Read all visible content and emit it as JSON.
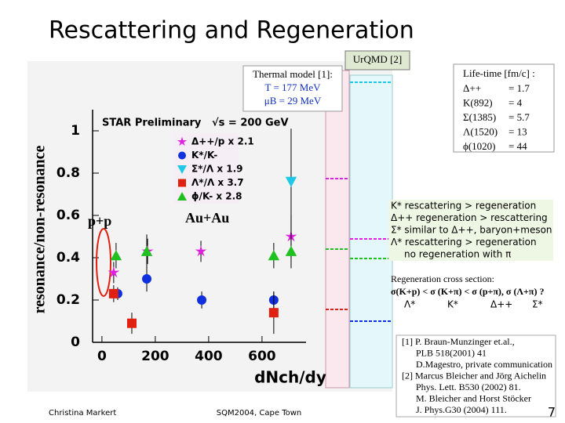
{
  "title": "Rescattering and Regeneration",
  "chart_data": {
    "type": "scatter",
    "annotation": "STAR Preliminary",
    "energy": "√s = 200 GeV",
    "system_labels": [
      "p+p",
      "Au+Au"
    ],
    "y_label": "resonance/non-resonance",
    "x_label": "dNch/dy",
    "xlim": [
      -35,
      765
    ],
    "ylim": [
      0,
      1.1
    ],
    "xticks": [
      0,
      200,
      400,
      600
    ],
    "yticks": [
      0,
      0.2,
      0.4,
      0.6,
      0.8,
      1
    ],
    "series": [
      {
        "name": "Δ++/p  x 2.1",
        "color": "#e020e0",
        "marker": "star",
        "x": [
          44,
          171,
          371,
          709
        ],
        "values": [
          0.33,
          0.43,
          0.43,
          0.5
        ],
        "errors": [
          0.05,
          0.06,
          0.05,
          0.1
        ]
      },
      {
        "name": "K*/K-",
        "color": "#1030e0",
        "marker": "circle",
        "x": [
          59,
          168,
          374,
          644
        ],
        "values": [
          0.23,
          0.3,
          0.2,
          0.2
        ],
        "errors": [
          0.03,
          0.06,
          0.04,
          0.04
        ]
      },
      {
        "name": "Σ*/Λ  x 1.9",
        "color": "#20c8e8",
        "marker": "triangle-down",
        "x": [
          709
        ],
        "values": [
          0.76
        ],
        "errors": [
          0.25
        ]
      },
      {
        "name": "Λ*/Λ  x 3.7",
        "color": "#e02010",
        "marker": "square",
        "x": [
          44,
          112,
          644
        ],
        "values": [
          0.23,
          0.09,
          0.14
        ],
        "errors": [
          0.04,
          0.05,
          0.1
        ]
      },
      {
        "name": "ϕ/K-  x 2.8",
        "color": "#20c020",
        "marker": "triangle-up",
        "x": [
          53,
          168,
          644,
          709
        ],
        "values": [
          0.41,
          0.43,
          0.41,
          0.43
        ],
        "errors": [
          0.06,
          0.08,
          0.06,
          0.08
        ]
      }
    ]
  },
  "thermal_model": {
    "title": "Thermal model [1]:",
    "lines": [
      "T = 177 MeV",
      "μB = 29 MeV"
    ]
  },
  "urqmd": "UrQMD [2]",
  "lifetime": {
    "title": "Life-time [fm/c] :",
    "rows": [
      [
        "Δ++",
        "= 1.7"
      ],
      [
        "K(892)",
        "= 4"
      ],
      [
        "Σ(1385)",
        "= 5.7"
      ],
      [
        "Λ(1520)",
        "= 13"
      ],
      [
        "ϕ(1020)",
        "= 44"
      ]
    ]
  },
  "rescattering": [
    "K* rescattering  > regeneration",
    "Δ++ regeneration > rescattering",
    "Σ* similar to Δ++, baryon+meson",
    "Λ* rescattering  > regeneration",
    "no regeneration with π"
  ],
  "regeneration": {
    "title": "Regeneration cross section:",
    "formula": "σ(K+p) < σ (K+π) < σ (p+π), σ (Λ+π) ?",
    "labels": [
      "Λ*",
      "K*",
      "Δ++",
      "Σ*"
    ]
  },
  "references": [
    "[1] P. Braun-Munzinger et.al.,",
    "PLB 518(2001) 41",
    "D.Magestro, private communication",
    "[2] Marcus Bleicher and Jörg Aichelin",
    "Phys. Lett. B530 (2002) 81.",
    "M. Bleicher and Horst Stöcker",
    "J. Phys.G30 (2004) 111."
  ],
  "footer": {
    "author": "Christina Markert",
    "conference": "SQM2004, Cape Town",
    "page": "7"
  }
}
